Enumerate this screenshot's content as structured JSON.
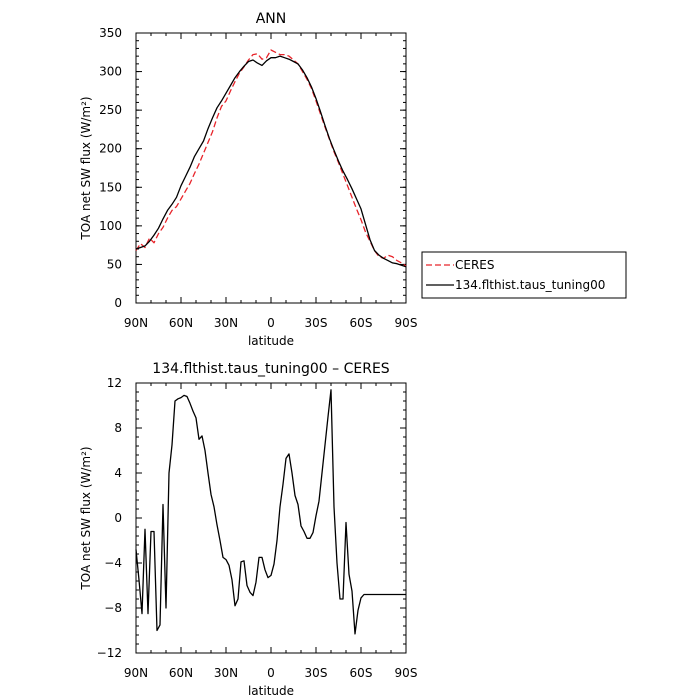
{
  "chart_data": [
    {
      "type": "line",
      "title": "ANN",
      "xlabel": "latitude",
      "ylabel": "TOA net SW flux (W/m²)",
      "xlim": [
        90,
        -90
      ],
      "ylim": [
        0,
        350
      ],
      "xticks": [
        {
          "value": 90,
          "label": "90N"
        },
        {
          "value": 60,
          "label": "60N"
        },
        {
          "value": 30,
          "label": "30N"
        },
        {
          "value": 0,
          "label": "0"
        },
        {
          "value": -30,
          "label": "30S"
        },
        {
          "value": -60,
          "label": "60S"
        },
        {
          "value": -90,
          "label": "90S"
        }
      ],
      "yticks": [
        0,
        50,
        100,
        150,
        200,
        250,
        300,
        350
      ],
      "legend": "outside-right",
      "series": [
        {
          "name": "CERES",
          "color": "#e8242a",
          "style": "dashed",
          "x": [
            90,
            87,
            84,
            81,
            78,
            75,
            72,
            69,
            66,
            63,
            60,
            57,
            54,
            51,
            48,
            45,
            42,
            39,
            36,
            33,
            30,
            27,
            24,
            21,
            18,
            15,
            12,
            9,
            6,
            3,
            0,
            -3,
            -6,
            -9,
            -12,
            -15,
            -18,
            -21,
            -24,
            -27,
            -30,
            -33,
            -36,
            -39,
            -42,
            -45,
            -48,
            -51,
            -54,
            -57,
            -60,
            -63,
            -66,
            -69,
            -72,
            -75,
            -78,
            -81,
            -84,
            -87,
            -90
          ],
          "y": [
            68,
            77,
            72,
            84,
            78,
            90,
            98,
            110,
            120,
            125,
            135,
            145,
            155,
            168,
            180,
            194,
            208,
            222,
            240,
            255,
            262,
            275,
            287,
            298,
            306,
            315,
            322,
            323,
            316,
            318,
            328,
            325,
            322,
            322,
            320,
            315,
            310,
            300,
            290,
            278,
            262,
            245,
            228,
            212,
            196,
            182,
            167,
            152,
            137,
            122,
            108,
            92,
            80,
            68,
            60,
            58,
            62,
            60,
            55,
            52,
            48
          ]
        },
        {
          "name": "134.flthist.taus_tuning00",
          "color": "#000000",
          "style": "solid",
          "x": [
            90,
            87,
            84,
            81,
            78,
            75,
            72,
            69,
            66,
            63,
            60,
            57,
            54,
            51,
            48,
            45,
            42,
            39,
            36,
            33,
            30,
            27,
            24,
            21,
            18,
            15,
            12,
            9,
            6,
            3,
            0,
            -3,
            -6,
            -9,
            -12,
            -15,
            -18,
            -21,
            -24,
            -27,
            -30,
            -33,
            -36,
            -39,
            -42,
            -45,
            -48,
            -51,
            -54,
            -57,
            -60,
            -63,
            -66,
            -69,
            -72,
            -75,
            -78,
            -81,
            -84,
            -87,
            -90
          ],
          "y": [
            70,
            72,
            74,
            80,
            88,
            97,
            109,
            120,
            128,
            137,
            152,
            164,
            176,
            190,
            200,
            210,
            226,
            240,
            253,
            262,
            272,
            282,
            292,
            300,
            307,
            313,
            315,
            311,
            308,
            314,
            318,
            318,
            320,
            318,
            316,
            313,
            310,
            302,
            292,
            280,
            265,
            248,
            230,
            213,
            198,
            184,
            171,
            160,
            148,
            135,
            122,
            102,
            82,
            68,
            62,
            58,
            55,
            52,
            51,
            49,
            47
          ]
        }
      ]
    },
    {
      "type": "line",
      "title": "134.flthist.taus_tuning00 – CERES",
      "xlabel": "latitude",
      "ylabel": "TOA net SW flux (W/m²)",
      "xlim": [
        90,
        -90
      ],
      "ylim": [
        -12,
        12
      ],
      "xticks": [
        {
          "value": 90,
          "label": "90N"
        },
        {
          "value": 60,
          "label": "60N"
        },
        {
          "value": 30,
          "label": "30N"
        },
        {
          "value": 0,
          "label": "0"
        },
        {
          "value": -30,
          "label": "30S"
        },
        {
          "value": -60,
          "label": "60S"
        },
        {
          "value": -90,
          "label": "90S"
        }
      ],
      "yticks": [
        -12,
        -8,
        -4,
        0,
        4,
        8,
        12
      ],
      "series": [
        {
          "color": "#000000",
          "style": "solid",
          "x": [
            90,
            88,
            86,
            84,
            82,
            80,
            78,
            76,
            74,
            72,
            70,
            68,
            66,
            64,
            62,
            60,
            58,
            56,
            54,
            52,
            50,
            48,
            46,
            44,
            42,
            40,
            38,
            36,
            34,
            32,
            30,
            28,
            26,
            24,
            22,
            20,
            18,
            16,
            14,
            12,
            10,
            8,
            6,
            4,
            2,
            0,
            -2,
            -4,
            -6,
            -8,
            -10,
            -12,
            -14,
            -16,
            -18,
            -20,
            -22,
            -24,
            -26,
            -28,
            -30,
            -32,
            -34,
            -36,
            -38,
            -40,
            -42,
            -44,
            -46,
            -48,
            -50,
            -52,
            -54,
            -56,
            -58,
            -60,
            -62,
            -64,
            -66,
            -68,
            -70,
            -72,
            -74,
            -76,
            -78,
            -80,
            -82,
            -84,
            -86,
            -88,
            -90
          ],
          "y": [
            -2.8,
            -5.5,
            -8.5,
            -1.0,
            -8.5,
            -1.2,
            -1.2,
            -10.0,
            -9.5,
            1.2,
            -8.0,
            4.0,
            6.5,
            10.4,
            10.6,
            10.7,
            10.9,
            10.8,
            10.2,
            9.5,
            8.9,
            7.0,
            7.3,
            6.0,
            4.0,
            2.1,
            1.0,
            -0.6,
            -2.0,
            -3.5,
            -3.7,
            -4.2,
            -5.5,
            -7.8,
            -7.2,
            -3.9,
            -3.8,
            -6.0,
            -6.6,
            -6.9,
            -5.7,
            -3.5,
            -3.5,
            -4.6,
            -5.3,
            -5.1,
            -4.1,
            -2.0,
            1.0,
            3.0,
            5.3,
            5.7,
            4.0,
            2.0,
            1.2,
            -0.7,
            -1.2,
            -1.8,
            -1.8,
            -1.3,
            0.2,
            1.5,
            4.0,
            6.5,
            9.0,
            11.4,
            1.0,
            -4.0,
            -7.2,
            -7.2,
            -0.4,
            -5.0,
            -6.5,
            -10.3,
            -8.2,
            -7.1,
            -6.8,
            -6.8,
            -6.8,
            -6.8,
            -6.8,
            -6.8,
            -6.8,
            -6.8,
            -6.8,
            -6.8,
            -6.8,
            -6.8,
            -6.8,
            -6.8,
            -6.8
          ]
        }
      ]
    }
  ]
}
